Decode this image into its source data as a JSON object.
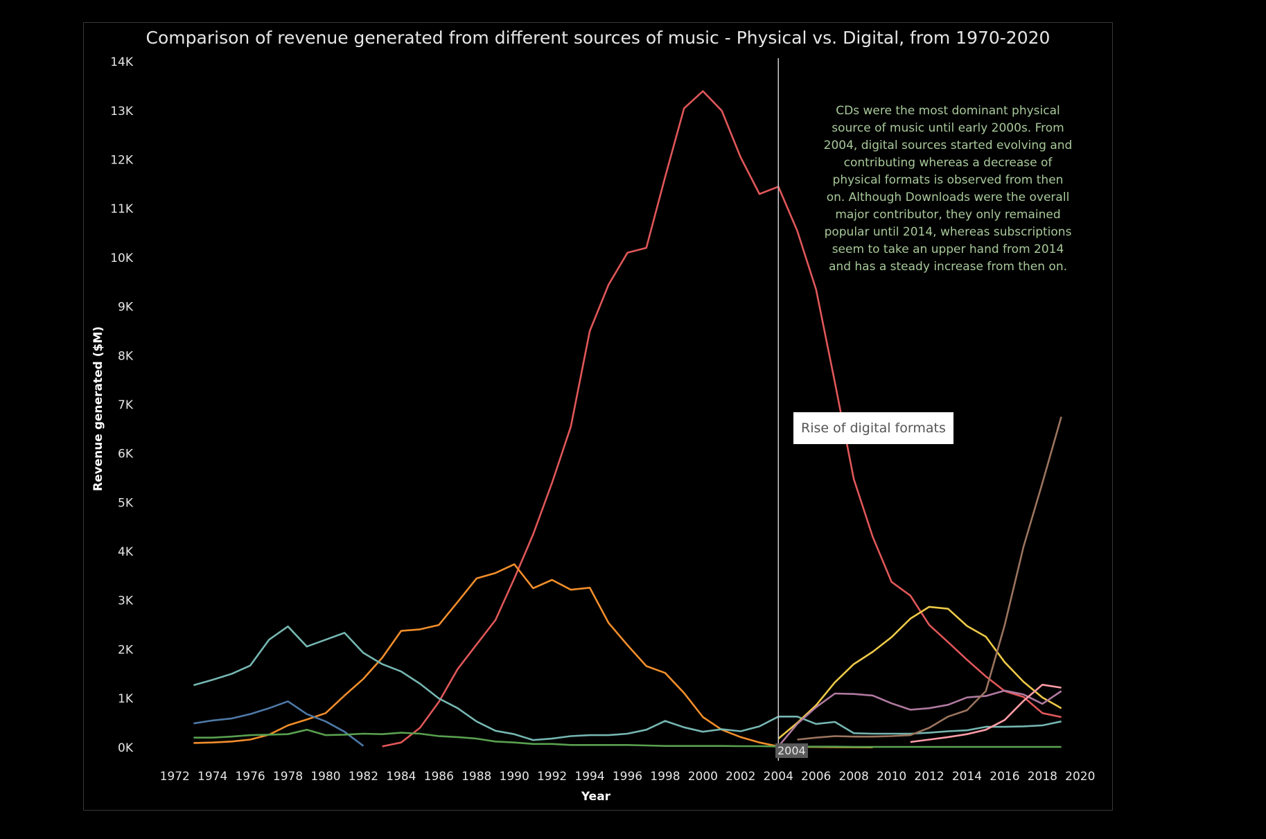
{
  "chart_data": {
    "type": "line",
    "title": "Comparison of revenue generated from different sources of music - Physical vs. Digital, from 1970-2020",
    "xlabel": "Year",
    "ylabel": "Revenue generated ($M)",
    "xlim": [
      1971,
      2021
    ],
    "ylim": [
      -300,
      14200
    ],
    "x_ticks": [
      "1972",
      "1974",
      "1976",
      "1978",
      "1980",
      "1982",
      "1984",
      "1986",
      "1988",
      "1990",
      "1992",
      "1994",
      "1996",
      "1998",
      "2000",
      "2002",
      "2004",
      "2006",
      "2008",
      "2010",
      "2012",
      "2014",
      "2016",
      "2018",
      "2020"
    ],
    "y_ticks": [
      "0K",
      "1K",
      "2K",
      "3K",
      "4K",
      "5K",
      "6K",
      "7K",
      "8K",
      "9K",
      "10K",
      "11K",
      "12K",
      "13K",
      "14K"
    ],
    "grid": false,
    "background": "#000000",
    "vertical_marker": {
      "x": 2004,
      "label": "2004",
      "color": "#cfcfcf"
    },
    "callout": "Rise of digital formats",
    "annotation": "CDs were the most dominant physical source of music until early 2000s. From 2004, digital sources started evolving and contributing whereas a decrease of physical formats is observed from then on. Although Downloads were the overall major contributor, they only remained popular until 2014, whereas subscriptions seem to take an upper hand from 2014 and has a steady increase from then on.",
    "annotation_color": "#a8c99a",
    "series": [
      {
        "color": "#e15759",
        "points": [
          [
            1983,
            20
          ],
          [
            1984,
            100
          ],
          [
            1985,
            400
          ],
          [
            1986,
            930
          ],
          [
            1987,
            1600
          ],
          [
            1988,
            2100
          ],
          [
            1989,
            2600
          ],
          [
            1990,
            3450
          ],
          [
            1991,
            4350
          ],
          [
            1992,
            5400
          ],
          [
            1993,
            6550
          ],
          [
            1994,
            8500
          ],
          [
            1995,
            9450
          ],
          [
            1996,
            10100
          ],
          [
            1997,
            10200
          ],
          [
            1998,
            11650
          ],
          [
            1999,
            13050
          ],
          [
            2000,
            13400
          ],
          [
            2001,
            13000
          ],
          [
            2002,
            12050
          ],
          [
            2003,
            11300
          ],
          [
            2004,
            11450
          ],
          [
            2005,
            10550
          ],
          [
            2006,
            9350
          ],
          [
            2007,
            7450
          ],
          [
            2008,
            5480
          ],
          [
            2009,
            4300
          ],
          [
            2010,
            3380
          ],
          [
            2011,
            3100
          ],
          [
            2012,
            2500
          ],
          [
            2013,
            2150
          ],
          [
            2014,
            1790
          ],
          [
            2015,
            1450
          ],
          [
            2016,
            1150
          ],
          [
            2017,
            1030
          ],
          [
            2018,
            700
          ],
          [
            2019,
            620
          ]
        ]
      },
      {
        "color": "#f28e2b",
        "points": [
          [
            1973,
            90
          ],
          [
            1974,
            100
          ],
          [
            1975,
            120
          ],
          [
            1976,
            160
          ],
          [
            1977,
            260
          ],
          [
            1978,
            450
          ],
          [
            1979,
            570
          ],
          [
            1980,
            700
          ],
          [
            1981,
            1060
          ],
          [
            1982,
            1400
          ],
          [
            1983,
            1830
          ],
          [
            1984,
            2380
          ],
          [
            1985,
            2410
          ],
          [
            1986,
            2500
          ],
          [
            1987,
            2970
          ],
          [
            1988,
            3450
          ],
          [
            1989,
            3560
          ],
          [
            1990,
            3740
          ],
          [
            1991,
            3250
          ],
          [
            1992,
            3420
          ],
          [
            1993,
            3220
          ],
          [
            1994,
            3260
          ],
          [
            1995,
            2540
          ],
          [
            1996,
            2090
          ],
          [
            1997,
            1660
          ],
          [
            1998,
            1520
          ],
          [
            1999,
            1110
          ],
          [
            2000,
            620
          ],
          [
            2001,
            360
          ],
          [
            2002,
            210
          ],
          [
            2003,
            100
          ],
          [
            2004,
            20
          ],
          [
            2005,
            10
          ],
          [
            2006,
            8
          ],
          [
            2007,
            5
          ],
          [
            2008,
            3
          ],
          [
            2009,
            2
          ]
        ]
      },
      {
        "color": "#76b7b2",
        "points": [
          [
            1973,
            1270
          ],
          [
            1974,
            1380
          ],
          [
            1975,
            1500
          ],
          [
            1976,
            1670
          ],
          [
            1977,
            2200
          ],
          [
            1978,
            2470
          ],
          [
            1979,
            2060
          ],
          [
            1980,
            2200
          ],
          [
            1981,
            2340
          ],
          [
            1982,
            1930
          ],
          [
            1983,
            1700
          ],
          [
            1984,
            1550
          ],
          [
            1985,
            1300
          ],
          [
            1986,
            1000
          ],
          [
            1987,
            800
          ],
          [
            1988,
            530
          ],
          [
            1989,
            340
          ],
          [
            1990,
            270
          ],
          [
            1991,
            150
          ],
          [
            1992,
            180
          ],
          [
            1993,
            230
          ],
          [
            1994,
            250
          ],
          [
            1995,
            250
          ],
          [
            1996,
            280
          ],
          [
            1997,
            360
          ],
          [
            1998,
            540
          ],
          [
            1999,
            410
          ],
          [
            2000,
            320
          ],
          [
            2001,
            370
          ],
          [
            2002,
            330
          ],
          [
            2003,
            430
          ],
          [
            2004,
            630
          ],
          [
            2005,
            630
          ],
          [
            2006,
            480
          ],
          [
            2007,
            520
          ],
          [
            2008,
            290
          ],
          [
            2009,
            280
          ],
          [
            2010,
            280
          ],
          [
            2011,
            280
          ],
          [
            2012,
            300
          ],
          [
            2013,
            330
          ],
          [
            2014,
            350
          ],
          [
            2015,
            420
          ],
          [
            2016,
            420
          ],
          [
            2017,
            430
          ],
          [
            2018,
            450
          ],
          [
            2019,
            530
          ]
        ]
      },
      {
        "color": "#4e79a7",
        "points": [
          [
            1973,
            490
          ],
          [
            1974,
            550
          ],
          [
            1975,
            590
          ],
          [
            1976,
            680
          ],
          [
            1977,
            800
          ],
          [
            1978,
            940
          ],
          [
            1979,
            680
          ],
          [
            1980,
            530
          ],
          [
            1981,
            320
          ],
          [
            1982,
            30
          ]
        ]
      },
      {
        "color": "#59a14f",
        "points": [
          [
            1973,
            200
          ],
          [
            1974,
            200
          ],
          [
            1975,
            220
          ],
          [
            1976,
            250
          ],
          [
            1977,
            260
          ],
          [
            1978,
            270
          ],
          [
            1979,
            360
          ],
          [
            1980,
            250
          ],
          [
            1981,
            260
          ],
          [
            1982,
            280
          ],
          [
            1983,
            270
          ],
          [
            1984,
            300
          ],
          [
            1985,
            280
          ],
          [
            1986,
            230
          ],
          [
            1987,
            210
          ],
          [
            1988,
            180
          ],
          [
            1989,
            120
          ],
          [
            1990,
            100
          ],
          [
            1991,
            70
          ],
          [
            1992,
            70
          ],
          [
            1993,
            50
          ],
          [
            1994,
            50
          ],
          [
            1995,
            50
          ],
          [
            1996,
            50
          ],
          [
            1997,
            40
          ],
          [
            1998,
            30
          ],
          [
            1999,
            30
          ],
          [
            2000,
            30
          ],
          [
            2001,
            30
          ],
          [
            2002,
            25
          ],
          [
            2003,
            25
          ],
          [
            2004,
            20
          ],
          [
            2005,
            15
          ],
          [
            2006,
            15
          ],
          [
            2007,
            15
          ],
          [
            2008,
            10
          ],
          [
            2009,
            10
          ],
          [
            2010,
            10
          ],
          [
            2011,
            10
          ],
          [
            2012,
            10
          ],
          [
            2013,
            10
          ],
          [
            2014,
            10
          ],
          [
            2015,
            10
          ],
          [
            2016,
            10
          ],
          [
            2017,
            10
          ],
          [
            2018,
            10
          ],
          [
            2019,
            10
          ]
        ]
      },
      {
        "color": "#edc948",
        "points": [
          [
            2004,
            180
          ],
          [
            2005,
            500
          ],
          [
            2006,
            860
          ],
          [
            2007,
            1330
          ],
          [
            2008,
            1700
          ],
          [
            2009,
            1950
          ],
          [
            2010,
            2250
          ],
          [
            2011,
            2630
          ],
          [
            2012,
            2870
          ],
          [
            2013,
            2830
          ],
          [
            2014,
            2480
          ],
          [
            2015,
            2260
          ],
          [
            2016,
            1740
          ],
          [
            2017,
            1340
          ],
          [
            2018,
            1020
          ],
          [
            2019,
            800
          ]
        ]
      },
      {
        "color": "#b07aa1",
        "points": [
          [
            2004,
            20
          ],
          [
            2005,
            480
          ],
          [
            2006,
            820
          ],
          [
            2007,
            1100
          ],
          [
            2008,
            1090
          ],
          [
            2009,
            1060
          ],
          [
            2010,
            900
          ],
          [
            2011,
            770
          ],
          [
            2012,
            800
          ],
          [
            2013,
            870
          ],
          [
            2014,
            1020
          ],
          [
            2015,
            1050
          ],
          [
            2016,
            1160
          ],
          [
            2017,
            1080
          ],
          [
            2018,
            890
          ],
          [
            2019,
            1150
          ]
        ]
      },
      {
        "color": "#9c755f",
        "points": [
          [
            2005,
            160
          ],
          [
            2006,
            200
          ],
          [
            2007,
            230
          ],
          [
            2008,
            220
          ],
          [
            2009,
            220
          ],
          [
            2010,
            230
          ],
          [
            2011,
            250
          ],
          [
            2012,
            400
          ],
          [
            2013,
            630
          ],
          [
            2014,
            760
          ],
          [
            2015,
            1150
          ],
          [
            2016,
            2500
          ],
          [
            2017,
            4100
          ],
          [
            2018,
            5400
          ],
          [
            2019,
            6750
          ]
        ]
      },
      {
        "color": "#ff9da7",
        "points": [
          [
            2011,
            110
          ],
          [
            2012,
            160
          ],
          [
            2013,
            210
          ],
          [
            2014,
            270
          ],
          [
            2015,
            360
          ],
          [
            2016,
            560
          ],
          [
            2017,
            950
          ],
          [
            2018,
            1280
          ],
          [
            2019,
            1220
          ]
        ]
      }
    ]
  }
}
